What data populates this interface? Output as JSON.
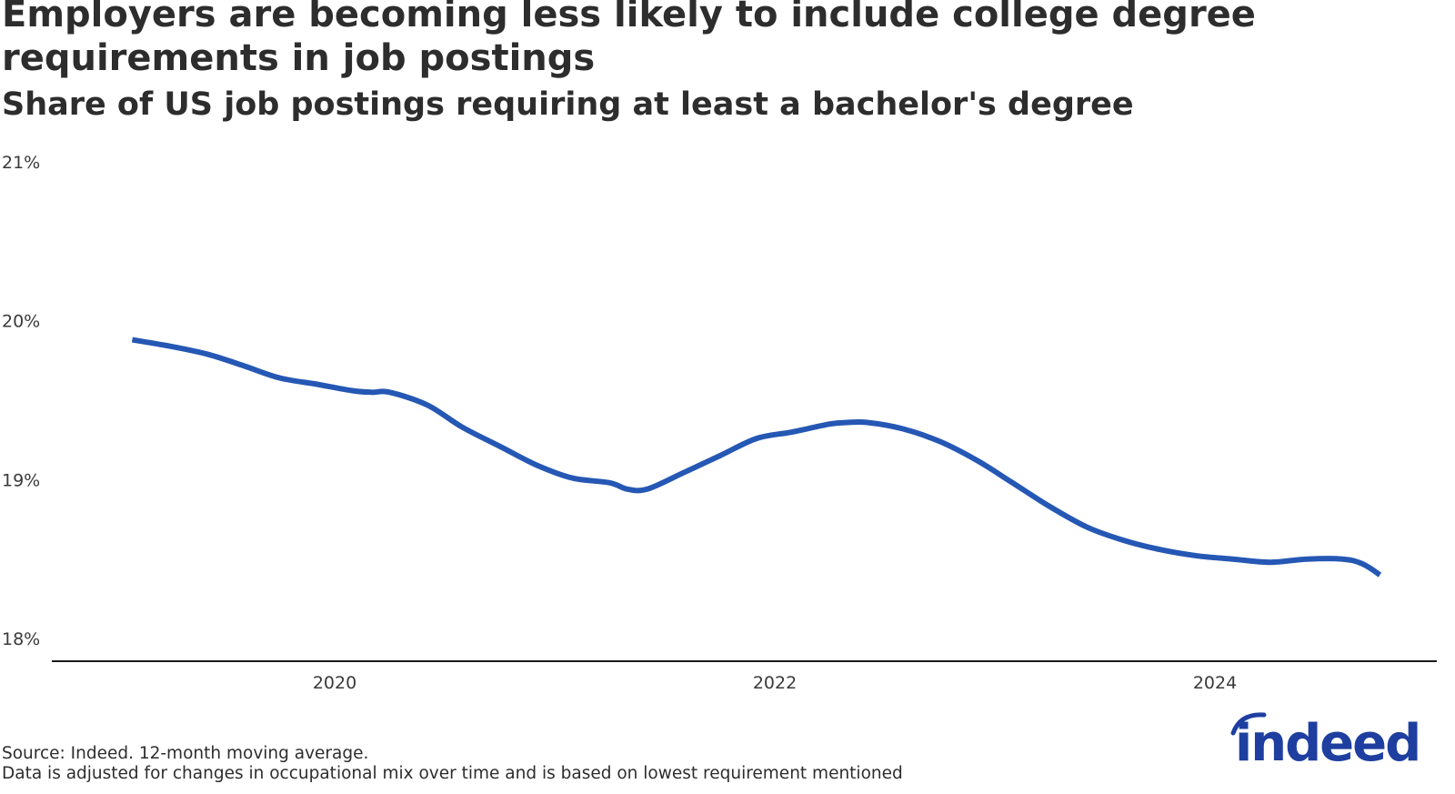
{
  "title": "Employers are becoming less likely to include college degree requirements in job postings",
  "subtitle": "Share of US job postings requiring at least a bachelor's degree",
  "footnote": {
    "source": "Source: Indeed. 12-month moving average.",
    "note": "Data is adjusted for changes in occupational mix over time and is based on lowest requirement mentioned"
  },
  "logo": {
    "text": "indeed",
    "color": "#1e3fa0"
  },
  "chart_data": {
    "type": "line",
    "xlabel": "",
    "ylabel": "",
    "x_ticks": [
      2020,
      2022,
      2024
    ],
    "y_ticks": [
      18,
      19,
      20,
      21
    ],
    "y_tick_labels": [
      "18%",
      "19%",
      "20%",
      "21%"
    ],
    "ylim": [
      18,
      21
    ],
    "xlim": [
      2018.7,
      2025.0
    ],
    "grid": false,
    "legend": "none",
    "series": [
      {
        "color": "#2557b4",
        "x": [
          2019.08,
          2019.25,
          2019.42,
          2019.58,
          2019.75,
          2019.92,
          2020.08,
          2020.17,
          2020.25,
          2020.42,
          2020.58,
          2020.75,
          2020.92,
          2021.08,
          2021.25,
          2021.33,
          2021.42,
          2021.58,
          2021.75,
          2021.92,
          2022.08,
          2022.25,
          2022.33,
          2022.42,
          2022.58,
          2022.75,
          2022.92,
          2023.08,
          2023.25,
          2023.42,
          2023.58,
          2023.75,
          2023.92,
          2024.08,
          2024.25,
          2024.42,
          2024.58,
          2024.67,
          2024.75
        ],
        "values": [
          19.88,
          19.84,
          19.79,
          19.72,
          19.64,
          19.6,
          19.56,
          19.55,
          19.55,
          19.47,
          19.33,
          19.21,
          19.09,
          19.01,
          18.98,
          18.94,
          18.94,
          19.04,
          19.15,
          19.26,
          19.3,
          19.35,
          19.36,
          19.36,
          19.32,
          19.24,
          19.12,
          18.98,
          18.83,
          18.7,
          18.62,
          18.56,
          18.52,
          18.5,
          18.48,
          18.5,
          18.5,
          18.47,
          18.4
        ]
      }
    ]
  }
}
